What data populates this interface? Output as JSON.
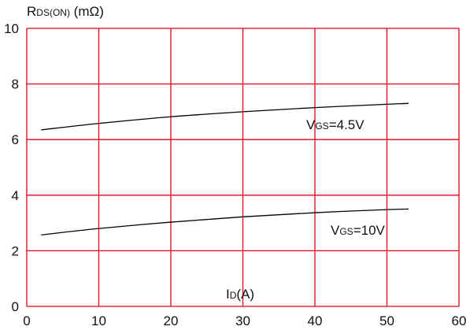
{
  "chart_data": {
    "type": "line",
    "ylabel": {
      "main": "R",
      "sub": "DS(ON)",
      "unit": " (mΩ)"
    },
    "xlabel": {
      "main": "I",
      "sub": "D",
      "unit": "(A)"
    },
    "xlim": [
      0,
      60
    ],
    "ylim": [
      0,
      10
    ],
    "xticks": [
      0,
      10,
      20,
      30,
      40,
      50,
      60
    ],
    "yticks": [
      0,
      2,
      4,
      6,
      8,
      10
    ],
    "grid": true,
    "colors": {
      "grid": "#e3001b",
      "line": "#000000",
      "text": "#111111"
    },
    "series": [
      {
        "name": {
          "main": "V",
          "sub": "GS",
          "value": "=4.5V"
        },
        "x": [
          2,
          10,
          20,
          30,
          40,
          50,
          53
        ],
        "y": [
          6.35,
          6.58,
          6.82,
          7.0,
          7.15,
          7.27,
          7.3
        ]
      },
      {
        "name": {
          "main": "V",
          "sub": "GS",
          "value": "=10V"
        },
        "x": [
          2,
          10,
          20,
          30,
          40,
          50,
          53
        ],
        "y": [
          2.57,
          2.8,
          3.03,
          3.22,
          3.37,
          3.48,
          3.5
        ]
      }
    ]
  }
}
